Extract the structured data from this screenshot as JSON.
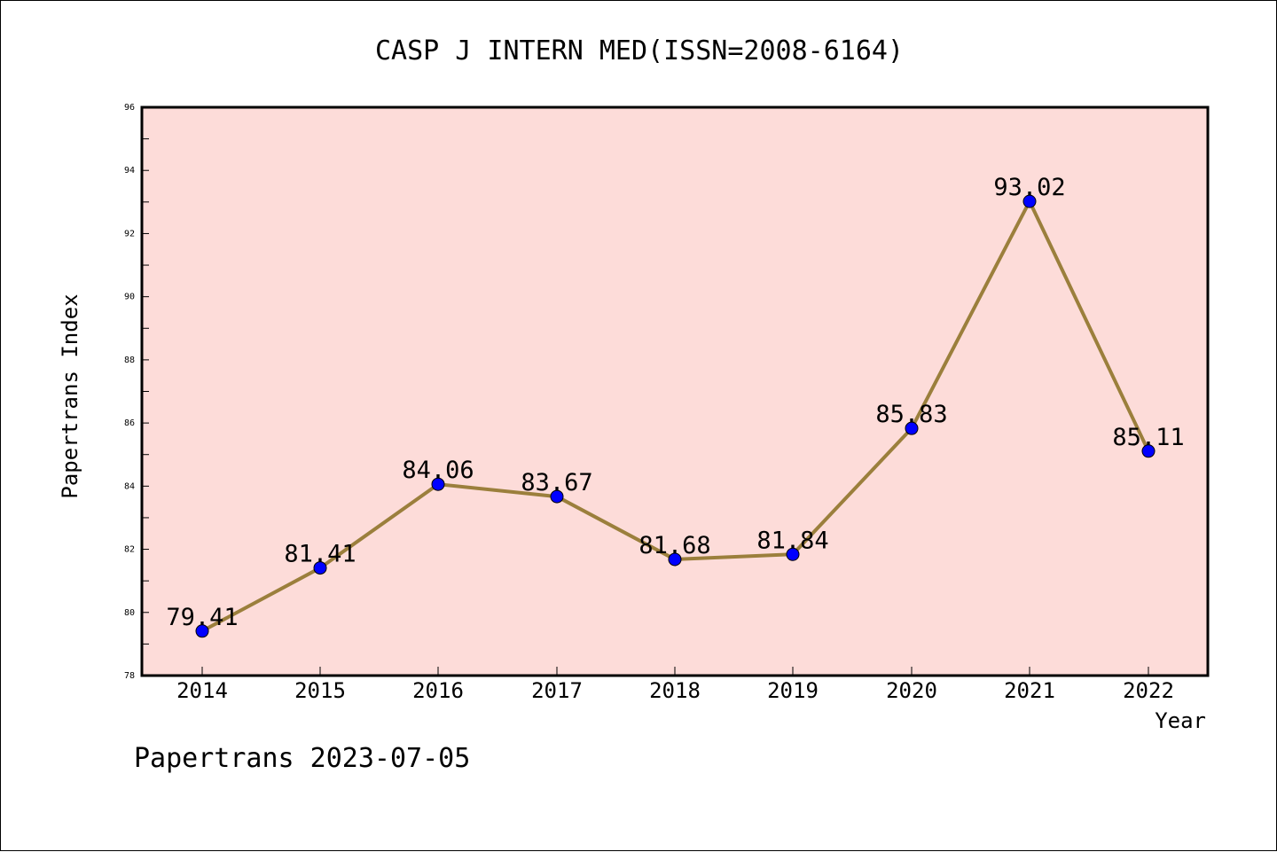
{
  "chart_data": {
    "type": "line",
    "title": "CASP J INTERN MED(ISSN=2008-6164)",
    "xlabel": "Year",
    "ylabel": "Papertrans Index",
    "categories": [
      "2014",
      "2015",
      "2016",
      "2017",
      "2018",
      "2019",
      "2020",
      "2021",
      "2022"
    ],
    "series": [
      {
        "values": [
          79.41,
          81.41,
          84.06,
          83.67,
          81.68,
          81.84,
          85.83,
          93.02,
          85.11
        ],
        "labels": [
          "79.41",
          "81.41",
          "84.06",
          "83.67",
          "81.68",
          "81.84",
          "85.83",
          "93.02",
          "85.11"
        ]
      }
    ],
    "ylim": [
      78,
      96
    ],
    "yticks": [
      "78",
      "80",
      "82",
      "84",
      "86",
      "88",
      "90",
      "92",
      "94",
      "96"
    ],
    "grid": false,
    "colors": {
      "plot_background": "#fddcd9",
      "line": "#9b7f3c",
      "marker": "#0000ff"
    }
  },
  "footer": "Papertrans 2023-07-05"
}
